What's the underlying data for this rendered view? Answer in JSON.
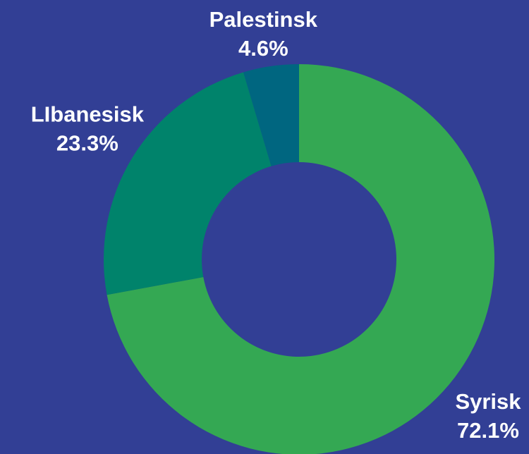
{
  "chart_data": {
    "type": "donut",
    "categories": [
      "Syrisk",
      "LIbanesisk",
      "Palestinsk"
    ],
    "values": [
      72.1,
      23.3,
      4.6
    ],
    "value_labels": [
      "72.1%",
      "23.3%",
      "4.6%"
    ],
    "colors": [
      "#34a853",
      "#00836b",
      "#006680"
    ]
  }
}
